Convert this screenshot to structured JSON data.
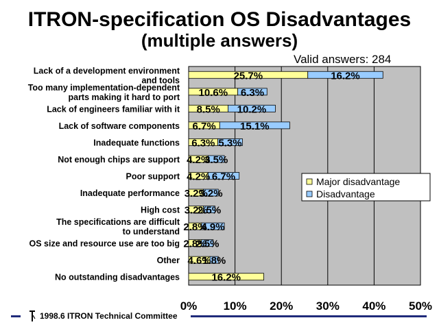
{
  "title": "ITRON-specification OS Disadvantages",
  "subtitle": "(multiple answers)",
  "valid_answers": "Valid answers: 284",
  "footer": {
    "text": "1998.6 ITRON Technical Committee"
  },
  "colors": {
    "major": "#ffff99",
    "disadvantage": "#99ccff",
    "plot_bg": "#c0c0c0",
    "footer_bar": "#1f2a7a"
  },
  "chart_data": {
    "type": "bar",
    "orientation": "horizontal",
    "stacked": true,
    "categories": [
      [
        "Lack of a development environment",
        "and tools"
      ],
      [
        "Too many implementation-dependent",
        "parts making it hard to port"
      ],
      [
        "Lack of engineers familiar with it"
      ],
      [
        "Lack of software components"
      ],
      [
        "Inadequate functions"
      ],
      [
        "Not enough chips are support"
      ],
      [
        "Poor support"
      ],
      [
        "Inadequate performance"
      ],
      [
        "High cost"
      ],
      [
        "The specifications are difficult",
        "to understand"
      ],
      [
        "OS size and resource use are too big"
      ],
      [
        "Other"
      ],
      [
        "No outstanding disadvantages"
      ]
    ],
    "series": [
      {
        "name": "Major disadvantage",
        "values": [
          25.7,
          10.6,
          8.5,
          6.7,
          6.3,
          4.2,
          4.2,
          3.2,
          3.2,
          2.8,
          2.8,
          4.6,
          16.2
        ],
        "labels": [
          "25.7%",
          "10.6%",
          "8.5%",
          "6.7%",
          "6.3%",
          "4.2%",
          "4.2%",
          "3.2%",
          "3.2%",
          "2.8%",
          "2.8%",
          "4.6%",
          "16.2%"
        ]
      },
      {
        "name": "Disadvantage",
        "values": [
          16.2,
          6.3,
          10.2,
          15.1,
          5.3,
          3.5,
          6.7,
          3.2,
          2.5,
          4.9,
          2.5,
          1.8,
          null
        ],
        "labels": [
          "16.2%",
          "6.3%",
          "10.2%",
          "15.1%",
          "5.3%",
          "3.5%",
          "6.7%",
          "3.2%",
          "2.5%",
          "4.9%",
          "2.5%",
          "1.8%",
          ""
        ]
      }
    ],
    "xlim": [
      0,
      50
    ],
    "xticks": [
      "0%",
      "10%",
      "20%",
      "30%",
      "40%",
      "50%"
    ],
    "grid": true,
    "legend": "right"
  }
}
